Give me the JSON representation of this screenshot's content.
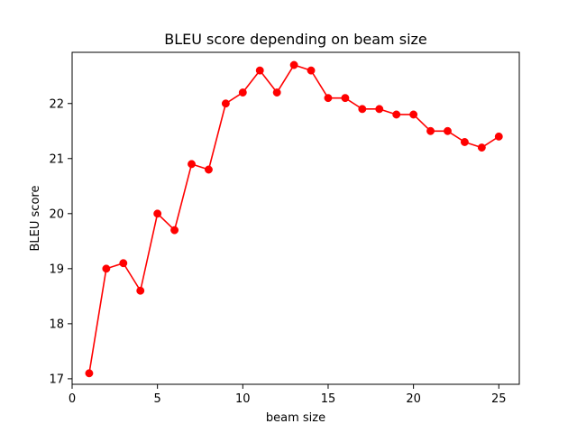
{
  "chart_data": {
    "type": "line",
    "title": "BLEU score depending on beam size",
    "xlabel": "beam size",
    "ylabel": "BLEU score",
    "xlim": [
      0,
      26.2
    ],
    "ylim": [
      16.9,
      22.93
    ],
    "xticks": [
      0,
      5,
      10,
      15,
      20,
      25
    ],
    "yticks": [
      17,
      18,
      19,
      20,
      21,
      22
    ],
    "grid": false,
    "marker": "circle",
    "color": "#ff0000",
    "series": [
      {
        "x": [
          1,
          2,
          3,
          4,
          5,
          6,
          7,
          8,
          9,
          10,
          11,
          12,
          13,
          14,
          15,
          16,
          17,
          18,
          19,
          20,
          21,
          22,
          23,
          24,
          25
        ],
        "y": [
          17.1,
          19.0,
          19.1,
          18.6,
          20.0,
          19.7,
          20.9,
          20.8,
          22.0,
          22.2,
          22.6,
          22.2,
          22.7,
          22.6,
          22.1,
          22.1,
          21.9,
          21.9,
          21.8,
          21.8,
          21.5,
          21.5,
          21.3,
          21.2,
          21.4
        ]
      }
    ]
  }
}
